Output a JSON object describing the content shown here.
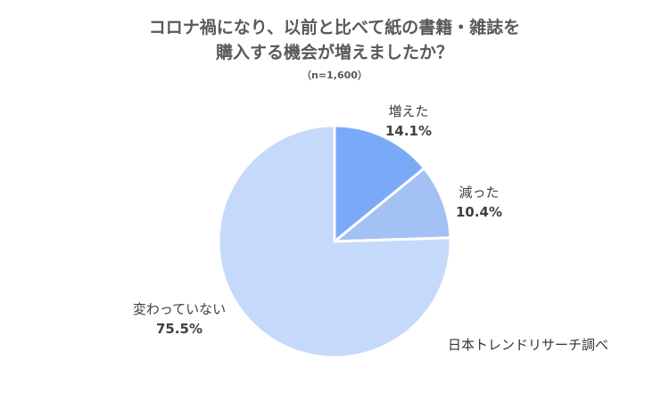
{
  "title": {
    "line1": "コロナ禍になり、以前と比べて紙の書籍・雑誌を",
    "line2": "購入する機会が増えましたか？",
    "sample": "（n=1,600）"
  },
  "source": "日本トレンドリサーチ調べ",
  "chart_data": {
    "type": "pie",
    "categories": [
      "増えた",
      "減った",
      "変わっていない"
    ],
    "values": [
      14.1,
      10.4,
      75.5
    ],
    "value_labels": [
      "14.1%",
      "10.4%",
      "75.5%"
    ],
    "colors": [
      "#7aaaf7",
      "#a4c1f5",
      "#c5d9fb"
    ],
    "start": "12 o'clock",
    "direction": "clockwise"
  }
}
